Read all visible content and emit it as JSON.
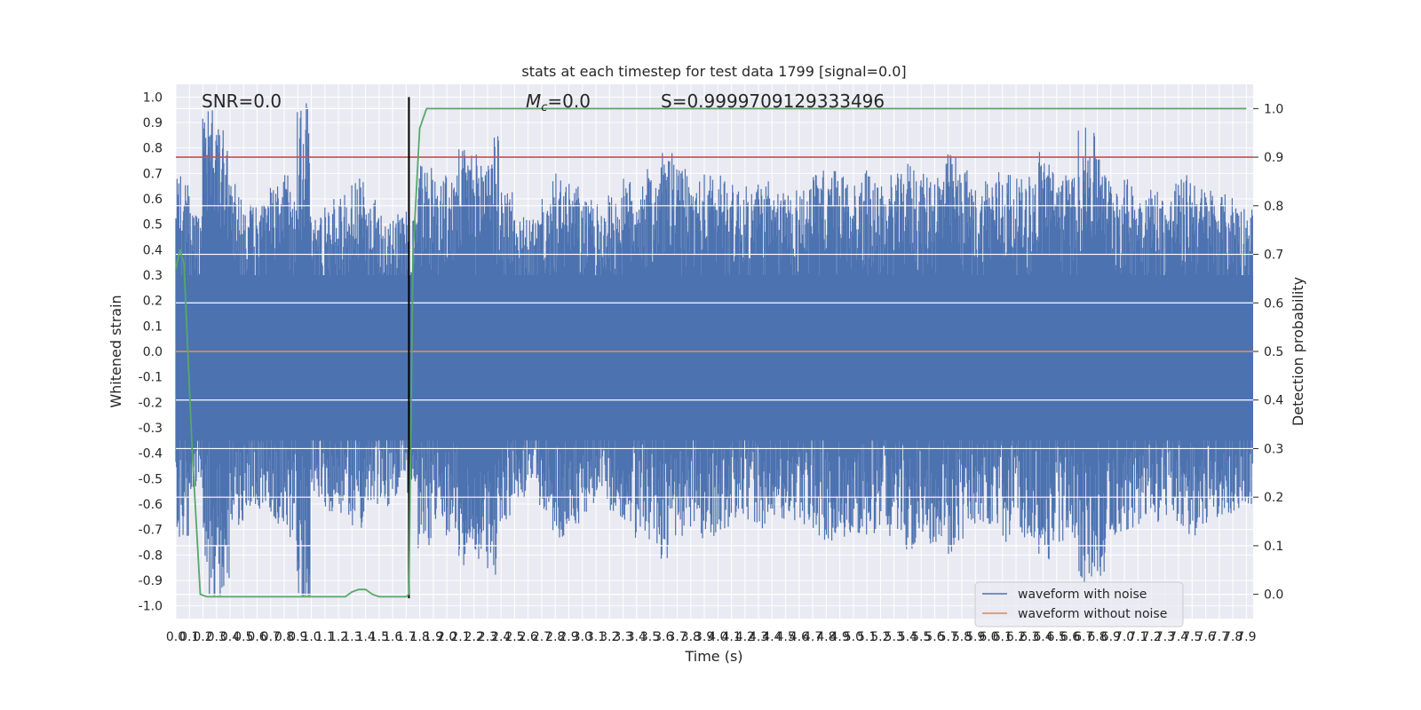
{
  "chart_data": {
    "type": "line",
    "title": "stats at each timestep for test data 1799 [signal=0.0]",
    "xlabel": "Time (s)",
    "ylabel": "Whitened strain",
    "y2label": "Detection probability",
    "xlim": [
      0.0,
      7.95
    ],
    "ylim": [
      -1.05,
      1.05
    ],
    "y2lim": [
      -0.05,
      1.05
    ],
    "x_ticks": [
      "0.0",
      "0.1",
      "0.2",
      "0.3",
      "0.4",
      "0.5",
      "0.6",
      "0.7",
      "0.8",
      "0.9",
      "1.0",
      "1.1",
      "1.2",
      "1.3",
      "1.4",
      "1.5",
      "1.6",
      "1.7",
      "1.8",
      "1.9",
      "2.0",
      "2.1",
      "2.2",
      "2.3",
      "2.4",
      "2.5",
      "2.6",
      "2.7",
      "2.8",
      "2.9",
      "3.0",
      "3.1",
      "3.2",
      "3.3",
      "3.4",
      "3.5",
      "3.6",
      "3.7",
      "3.8",
      "3.9",
      "4.0",
      "4.1",
      "4.2",
      "4.3",
      "4.4",
      "4.5",
      "4.6",
      "4.7",
      "4.8",
      "4.9",
      "5.0",
      "5.1",
      "5.2",
      "5.3",
      "5.4",
      "5.5",
      "5.6",
      "5.7",
      "5.8",
      "5.9",
      "6.0",
      "6.1",
      "6.2",
      "6.3",
      "6.4",
      "6.5",
      "6.6",
      "6.7",
      "6.8",
      "6.9",
      "7.0",
      "7.1",
      "7.2",
      "7.3",
      "7.4",
      "7.5",
      "7.6",
      "7.7",
      "7.8",
      "7.9"
    ],
    "y_ticks": [
      "1.0",
      "0.9",
      "0.8",
      "0.7",
      "0.6",
      "0.5",
      "0.4",
      "0.3",
      "0.2",
      "0.1",
      "0.0",
      "-0.1",
      "-0.2",
      "-0.3",
      "-0.4",
      "-0.5",
      "-0.6",
      "-0.7",
      "-0.8",
      "-0.9",
      "-1.0"
    ],
    "y2_ticks": [
      "1.0",
      "0.9",
      "0.8",
      "0.7",
      "0.6",
      "0.5",
      "0.4",
      "0.3",
      "0.2",
      "0.1",
      "0.0"
    ],
    "annotations": {
      "snr": "SNR=0.0",
      "mc": "=0.0",
      "mc_symbol": "M",
      "mc_sub": "c",
      "s": "S=0.9999709129333496"
    },
    "threshold_line": {
      "axis": "y2",
      "value": 0.9,
      "color": "#c44e52"
    },
    "marker_line": {
      "axis": "x",
      "value": 1.72,
      "color": "#000000"
    },
    "series": [
      {
        "name": "waveform with noise",
        "color": "#4c72b0",
        "envelope": "noise",
        "amplitude_high": [
          0.7,
          0.55,
          0.95,
          0.92,
          0.66,
          0.58,
          0.6,
          0.65,
          0.72,
          1.0,
          0.55,
          0.6,
          0.62,
          0.68,
          0.6,
          0.58,
          0.55,
          0.55,
          0.75,
          0.7,
          0.7,
          0.8,
          0.78,
          0.85,
          0.65,
          0.55,
          0.52,
          0.6,
          0.7,
          0.66,
          0.6,
          0.58,
          0.62,
          0.68,
          0.7,
          0.72,
          0.78,
          0.72,
          0.68,
          0.7,
          0.72,
          0.66,
          0.65,
          0.68,
          0.62,
          0.65,
          0.65,
          0.7,
          0.72,
          0.7,
          0.68,
          0.72,
          0.65,
          0.7,
          0.75,
          0.7,
          0.72,
          0.78,
          0.72,
          0.65,
          0.7,
          0.72,
          0.68,
          0.7,
          0.8,
          0.72,
          0.7,
          0.88,
          0.86,
          0.7,
          0.68,
          0.66,
          0.65,
          0.62,
          0.68,
          0.7,
          0.65,
          0.62,
          0.62,
          0.58
        ]
      },
      {
        "name": "waveform without noise",
        "color": "#dd8452",
        "x": [
          0.0,
          7.95
        ],
        "y": [
          0.0,
          0.0
        ]
      },
      {
        "name": "detection probability",
        "color": "#55a868",
        "axis": "y2",
        "x": [
          0.0,
          0.03,
          0.06,
          0.12,
          0.18,
          0.23,
          0.3,
          0.6,
          0.9,
          1.2,
          1.25,
          1.3,
          1.35,
          1.4,
          1.45,
          1.5,
          1.6,
          1.7,
          1.72,
          1.75,
          1.8,
          1.85,
          1.9,
          2.5,
          4.0,
          6.0,
          7.9
        ],
        "y": [
          0.67,
          0.71,
          0.68,
          0.3,
          0.0,
          -0.005,
          -0.005,
          -0.005,
          -0.005,
          -0.005,
          -0.005,
          0.005,
          0.01,
          0.01,
          0.0,
          -0.005,
          -0.005,
          -0.005,
          0.0,
          0.7,
          0.96,
          1.0,
          1.0,
          1.0,
          1.0,
          1.0,
          1.0
        ]
      }
    ],
    "legend": {
      "placement": "lower-right",
      "entries": [
        {
          "label": "waveform with noise",
          "color": "#4c72b0"
        },
        {
          "label": "waveform without noise",
          "color": "#dd8452"
        }
      ]
    },
    "grid": true,
    "colors": {
      "background": "#eaeaf2",
      "grid": "#ffffff"
    }
  }
}
